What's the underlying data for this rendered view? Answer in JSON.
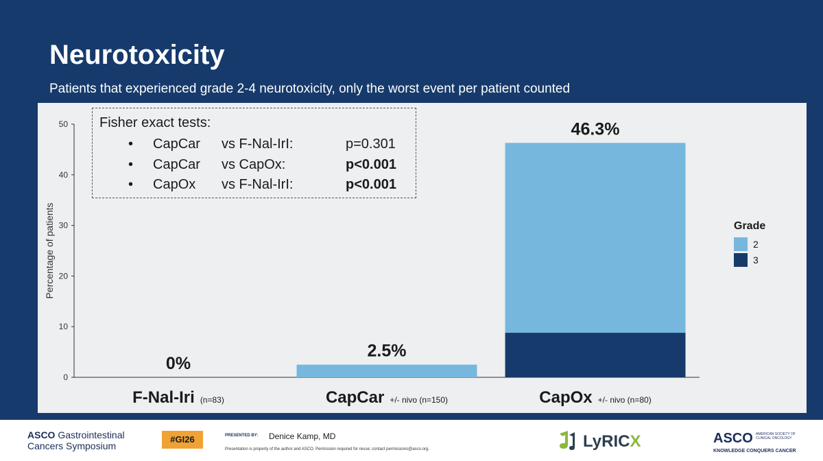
{
  "slide": {
    "title": "Neurotoxicity",
    "subtitle": "Patients that experienced grade 2-4 neurotoxicity, only the worst event per patient counted"
  },
  "stats_box": {
    "title": "Fisher exact tests:",
    "rows": [
      {
        "bullet": "•",
        "lhs": "CapCar",
        "vs": "vs F-Nal-IrI:",
        "p": "p=0.301",
        "bold": false
      },
      {
        "bullet": "•",
        "lhs": "CapCar",
        "vs": "vs CapOx:",
        "p": "p<0.001",
        "bold": true
      },
      {
        "bullet": "•",
        "lhs": "CapOx",
        "vs": "vs F-Nal-IrI:",
        "p": "p<0.001",
        "bold": true
      }
    ]
  },
  "chart_data": {
    "type": "bar",
    "stacked": true,
    "ylabel": "Percentage of patients",
    "ylim": [
      0,
      50
    ],
    "yticks": [
      0,
      10,
      20,
      30,
      40,
      50
    ],
    "categories": [
      {
        "name": "F-Nal-Iri",
        "note": "(n=83)",
        "total_label": "0%"
      },
      {
        "name": "CapCar",
        "note": "+/- nivo (n=150)",
        "total_label": "2.5%"
      },
      {
        "name": "CapOx",
        "note": "+/- nivo (n=80)",
        "total_label": "46.3%"
      }
    ],
    "series": [
      {
        "name": "3",
        "color": "#163a6b",
        "values": [
          0,
          0,
          8.8
        ]
      },
      {
        "name": "2",
        "color": "#76b7dd",
        "values": [
          0,
          2.5,
          37.5
        ]
      }
    ],
    "legend": {
      "title": "Grade",
      "items": [
        "2",
        "3"
      ],
      "position": "right"
    },
    "grid": false
  },
  "footer": {
    "asco_line1": "ASCO",
    "asco_line1b": " Gastrointestinal",
    "asco_line2": "Cancers Symposium",
    "hashtag": "#GI26",
    "presented_by": "PRESENTED BY:",
    "presenter": "Denice Kamp, MD",
    "disclaimer": "Presentation is property of the author and ASCO. Permission required for reuse; contact permissions@asco.org.",
    "lyricx_main": "LyRIC",
    "lyricx_x": "X",
    "asco_right_word": "ASCO",
    "asco_right_sub": "AMERICAN SOCIETY OF CLINICAL ONCOLOGY",
    "asco_right_tag": "KNOWLEDGE CONQUERS CANCER",
    "hashtag_color": "#f0a234"
  }
}
